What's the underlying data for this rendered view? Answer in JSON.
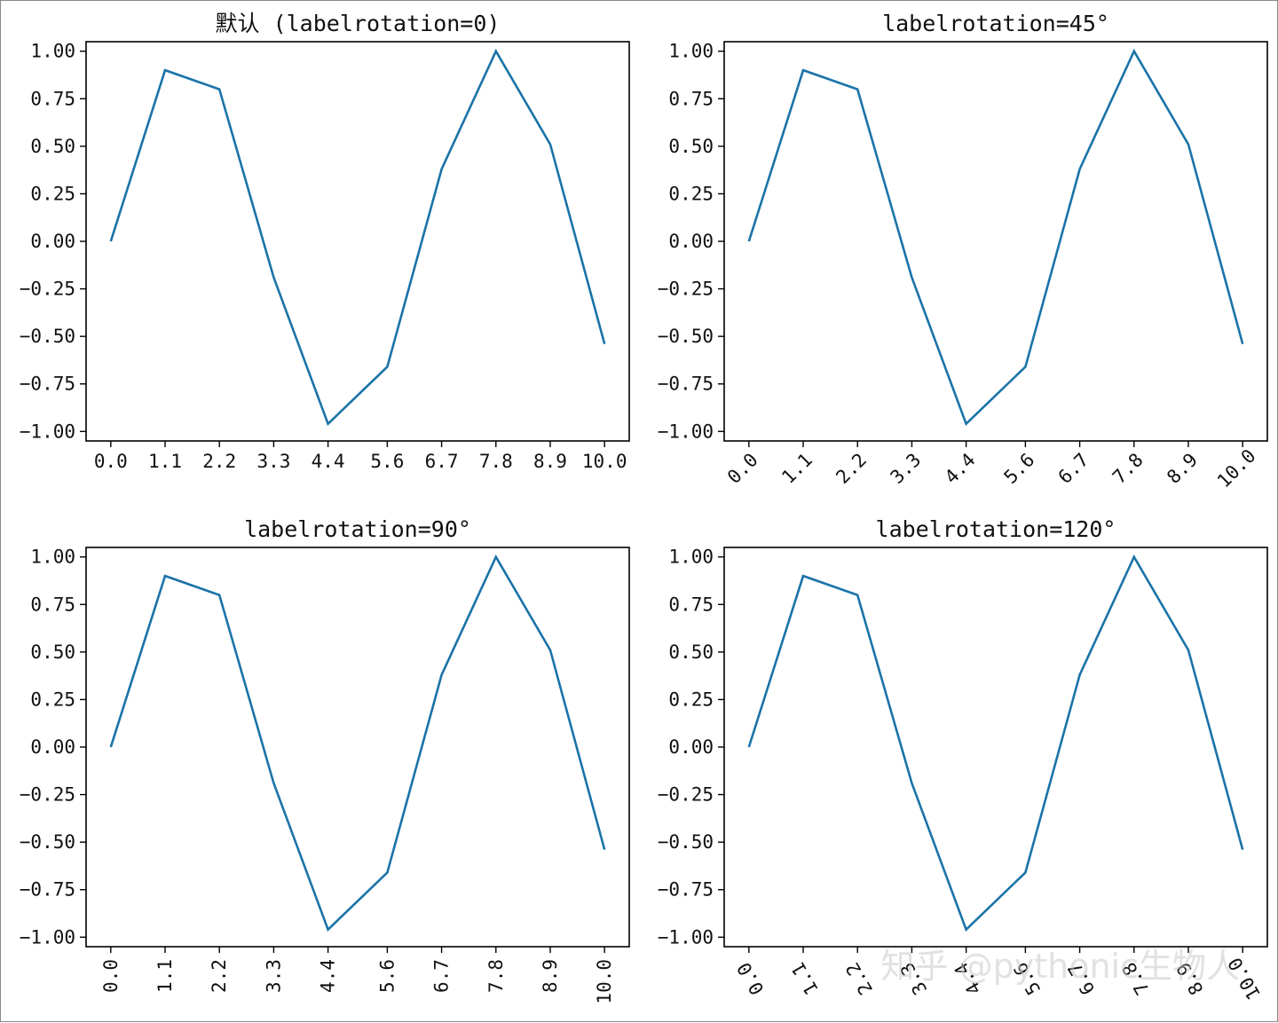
{
  "figure": {
    "line_color": "#1a73a8",
    "watermark": "知乎 @pythonic生物人"
  },
  "chart_data": [
    {
      "type": "line",
      "title": "默认 (labelrotation=0)",
      "labelrotation": 0,
      "x": [
        0.0,
        1.1,
        2.2,
        3.3,
        4.4,
        5.6,
        6.7,
        7.8,
        8.9,
        10.0
      ],
      "y": [
        0.0,
        0.9,
        0.8,
        -0.19,
        -0.96,
        -0.66,
        0.38,
        1.0,
        0.51,
        -0.54
      ],
      "xtick_labels": [
        "0.0",
        "1.1",
        "2.2",
        "3.3",
        "4.4",
        "5.6",
        "6.7",
        "7.8",
        "8.9",
        "10.0"
      ],
      "yticks": [
        -1.0,
        -0.75,
        -0.5,
        -0.25,
        0.0,
        0.25,
        0.5,
        0.75,
        1.0
      ],
      "ytick_labels": [
        "−1.00",
        "−0.75",
        "−0.50",
        "−0.25",
        "0.00",
        "0.25",
        "0.50",
        "0.75",
        "1.00"
      ],
      "xlim": [
        -0.5,
        10.5
      ],
      "ylim": [
        -1.05,
        1.05
      ],
      "grid": false
    },
    {
      "type": "line",
      "title": "labelrotation=45°",
      "labelrotation": 45,
      "x": [
        0.0,
        1.1,
        2.2,
        3.3,
        4.4,
        5.6,
        6.7,
        7.8,
        8.9,
        10.0
      ],
      "y": [
        0.0,
        0.9,
        0.8,
        -0.19,
        -0.96,
        -0.66,
        0.38,
        1.0,
        0.51,
        -0.54
      ],
      "xtick_labels": [
        "0.0",
        "1.1",
        "2.2",
        "3.3",
        "4.4",
        "5.6",
        "6.7",
        "7.8",
        "8.9",
        "10.0"
      ],
      "yticks": [
        -1.0,
        -0.75,
        -0.5,
        -0.25,
        0.0,
        0.25,
        0.5,
        0.75,
        1.0
      ],
      "ytick_labels": [
        "−1.00",
        "−0.75",
        "−0.50",
        "−0.25",
        "0.00",
        "0.25",
        "0.50",
        "0.75",
        "1.00"
      ],
      "xlim": [
        -0.5,
        10.5
      ],
      "ylim": [
        -1.05,
        1.05
      ],
      "grid": false
    },
    {
      "type": "line",
      "title": "labelrotation=90°",
      "labelrotation": 90,
      "x": [
        0.0,
        1.1,
        2.2,
        3.3,
        4.4,
        5.6,
        6.7,
        7.8,
        8.9,
        10.0
      ],
      "y": [
        0.0,
        0.9,
        0.8,
        -0.19,
        -0.96,
        -0.66,
        0.38,
        1.0,
        0.51,
        -0.54
      ],
      "xtick_labels": [
        "0.0",
        "1.1",
        "2.2",
        "3.3",
        "4.4",
        "5.6",
        "6.7",
        "7.8",
        "8.9",
        "10.0"
      ],
      "yticks": [
        -1.0,
        -0.75,
        -0.5,
        -0.25,
        0.0,
        0.25,
        0.5,
        0.75,
        1.0
      ],
      "ytick_labels": [
        "−1.00",
        "−0.75",
        "−0.50",
        "−0.25",
        "0.00",
        "0.25",
        "0.50",
        "0.75",
        "1.00"
      ],
      "xlim": [
        -0.5,
        10.5
      ],
      "ylim": [
        -1.05,
        1.05
      ],
      "grid": false
    },
    {
      "type": "line",
      "title": "labelrotation=120°",
      "labelrotation": 120,
      "x": [
        0.0,
        1.1,
        2.2,
        3.3,
        4.4,
        5.6,
        6.7,
        7.8,
        8.9,
        10.0
      ],
      "y": [
        0.0,
        0.9,
        0.8,
        -0.19,
        -0.96,
        -0.66,
        0.38,
        1.0,
        0.51,
        -0.54
      ],
      "xtick_labels": [
        "0.0",
        "1.1",
        "2.2",
        "3.3",
        "4.4",
        "5.6",
        "6.7",
        "7.8",
        "8.9",
        "10.0"
      ],
      "yticks": [
        -1.0,
        -0.75,
        -0.5,
        -0.25,
        0.0,
        0.25,
        0.5,
        0.75,
        1.0
      ],
      "ytick_labels": [
        "−1.00",
        "−0.75",
        "−0.50",
        "−0.25",
        "0.00",
        "0.25",
        "0.50",
        "0.75",
        "1.00"
      ],
      "xlim": [
        -0.5,
        10.5
      ],
      "ylim": [
        -1.05,
        1.05
      ],
      "grid": false
    }
  ]
}
